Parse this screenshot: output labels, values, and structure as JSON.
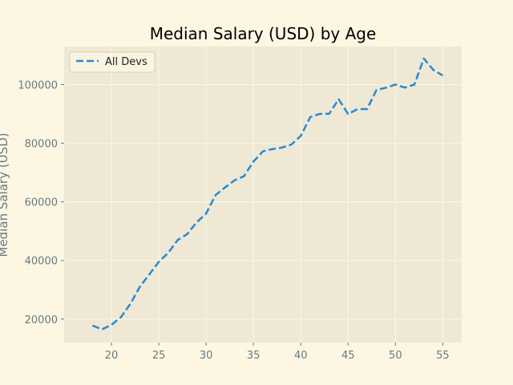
{
  "chart_data": {
    "type": "line",
    "title": "Median Salary (USD) by Age",
    "xlabel": "",
    "ylabel": "Median Salary (USD)",
    "xlim": [
      15,
      57
    ],
    "ylim": [
      12000,
      113000
    ],
    "xticks": [
      20,
      25,
      30,
      35,
      40,
      45,
      50,
      55
    ],
    "yticks": [
      20000,
      40000,
      60000,
      80000,
      100000
    ],
    "grid": true,
    "legend_position": "top-left",
    "x": [
      18,
      19,
      20,
      21,
      22,
      23,
      24,
      25,
      26,
      27,
      28,
      29,
      30,
      31,
      32,
      33,
      34,
      35,
      36,
      37,
      38,
      39,
      40,
      41,
      42,
      43,
      44,
      45,
      46,
      47,
      48,
      49,
      50,
      51,
      52,
      53,
      54,
      55
    ],
    "series": [
      {
        "name": "All Devs",
        "color": "#268bd2",
        "line_style": "dashed",
        "values": [
          17784,
          16500,
          18012,
          20628,
          25206,
          31018,
          35232,
          39500,
          42626,
          47000,
          49000,
          53000,
          56000,
          62316,
          64928,
          67317,
          68748,
          73752,
          77232,
          78000,
          78508,
          79536,
          82488,
          88935,
          90000,
          90056,
          95000,
          90000,
          91633,
          91660,
          98150,
          98964,
          100000,
          98988,
          100000,
          108923,
          105000,
          103117
        ]
      }
    ]
  }
}
